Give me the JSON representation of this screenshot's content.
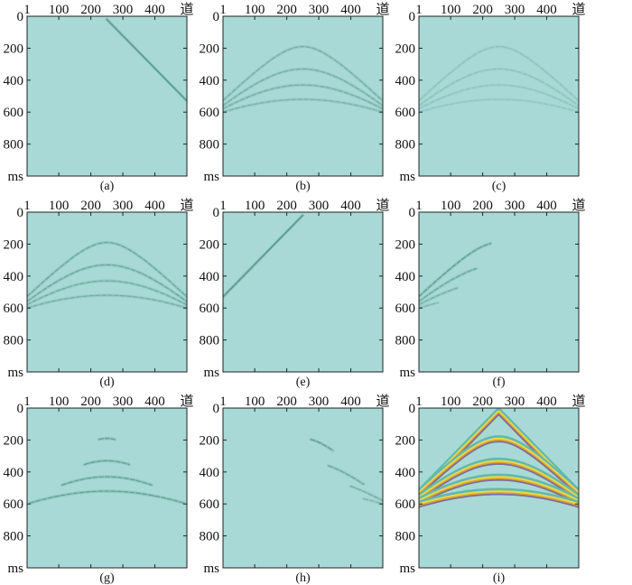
{
  "colors": {
    "background": "#a8d9d6",
    "frame": "#222222",
    "event": "#6fae9e",
    "event_dark": "#4f8f82",
    "band_purple": "#7a6aa6",
    "band_orange": "#d8a038",
    "band_yellow": "#e8d84a",
    "band_teal": "#5fb9b0"
  },
  "chart_data": [
    {
      "panel": "a",
      "caption": "(a)",
      "type": "heatmap",
      "xticks": [
        "1",
        "100",
        "200",
        "300",
        "400",
        "道"
      ],
      "yticks": [
        "0",
        "200",
        "400",
        "600",
        "800",
        "ms"
      ],
      "xlim": [
        1,
        500
      ],
      "ylim": [
        0,
        1000
      ],
      "y_inverted": true,
      "series": [
        {
          "kind": "line",
          "strength": 0.9,
          "x": [
            250,
            500
          ],
          "y": [
            20,
            530
          ]
        }
      ]
    },
    {
      "panel": "b",
      "caption": "(b)",
      "type": "heatmap",
      "xticks": [
        "1",
        "100",
        "200",
        "300",
        "400",
        "道"
      ],
      "yticks": [
        "0",
        "200",
        "400",
        "600",
        "800",
        "ms"
      ],
      "xlim": [
        1,
        500
      ],
      "ylim": [
        0,
        1000
      ],
      "y_inverted": true,
      "series": [
        {
          "kind": "hyperbola",
          "strength": 0.5,
          "apex_x": 250,
          "apex_t": 190,
          "edge_t": 530,
          "x_range": [
            1,
            500
          ]
        },
        {
          "kind": "hyperbola",
          "strength": 0.5,
          "apex_x": 250,
          "apex_t": 330,
          "edge_t": 560,
          "x_range": [
            1,
            500
          ]
        },
        {
          "kind": "hyperbola",
          "strength": 0.5,
          "apex_x": 250,
          "apex_t": 430,
          "edge_t": 580,
          "x_range": [
            1,
            500
          ]
        },
        {
          "kind": "hyperbola",
          "strength": 0.45,
          "apex_x": 250,
          "apex_t": 520,
          "edge_t": 600,
          "x_range": [
            1,
            500
          ]
        }
      ]
    },
    {
      "panel": "c",
      "caption": "(c)",
      "type": "heatmap",
      "xticks": [
        "1",
        "100",
        "200",
        "300",
        "400",
        "道"
      ],
      "yticks": [
        "0",
        "200",
        "400",
        "600",
        "800",
        "ms"
      ],
      "xlim": [
        1,
        500
      ],
      "ylim": [
        0,
        1000
      ],
      "y_inverted": true,
      "series": [
        {
          "kind": "hyperbola",
          "strength": 0.25,
          "apex_x": 250,
          "apex_t": 190,
          "edge_t": 530,
          "x_range": [
            1,
            500
          ]
        },
        {
          "kind": "hyperbola",
          "strength": 0.25,
          "apex_x": 250,
          "apex_t": 330,
          "edge_t": 560,
          "x_range": [
            1,
            500
          ]
        },
        {
          "kind": "hyperbola",
          "strength": 0.22,
          "apex_x": 250,
          "apex_t": 430,
          "edge_t": 580,
          "x_range": [
            1,
            500
          ]
        },
        {
          "kind": "hyperbola",
          "strength": 0.2,
          "apex_x": 250,
          "apex_t": 520,
          "edge_t": 600,
          "x_range": [
            1,
            500
          ]
        }
      ]
    },
    {
      "panel": "d",
      "caption": "(d)",
      "type": "heatmap",
      "xticks": [
        "1",
        "100",
        "200",
        "300",
        "400",
        "道"
      ],
      "yticks": [
        "0",
        "200",
        "400",
        "600",
        "800",
        "ms"
      ],
      "xlim": [
        1,
        500
      ],
      "ylim": [
        0,
        1000
      ],
      "y_inverted": true,
      "series": [
        {
          "kind": "hyperbola",
          "strength": 0.6,
          "apex_x": 250,
          "apex_t": 190,
          "edge_t": 530,
          "x_range": [
            1,
            500
          ]
        },
        {
          "kind": "hyperbola",
          "strength": 0.6,
          "apex_x": 250,
          "apex_t": 330,
          "edge_t": 560,
          "x_range": [
            1,
            500
          ]
        },
        {
          "kind": "hyperbola",
          "strength": 0.55,
          "apex_x": 250,
          "apex_t": 430,
          "edge_t": 580,
          "x_range": [
            1,
            500
          ]
        },
        {
          "kind": "hyperbola",
          "strength": 0.5,
          "apex_x": 250,
          "apex_t": 520,
          "edge_t": 600,
          "x_range": [
            1,
            500
          ]
        }
      ]
    },
    {
      "panel": "e",
      "caption": "(e)",
      "type": "heatmap",
      "xticks": [
        "1",
        "100",
        "200",
        "300",
        "400",
        "道"
      ],
      "yticks": [
        "0",
        "200",
        "400",
        "600",
        "800",
        "ms"
      ],
      "xlim": [
        1,
        500
      ],
      "ylim": [
        0,
        1000
      ],
      "y_inverted": true,
      "series": [
        {
          "kind": "line",
          "strength": 0.95,
          "x": [
            1,
            250
          ],
          "y": [
            530,
            20
          ]
        }
      ]
    },
    {
      "panel": "f",
      "caption": "(f)",
      "type": "heatmap",
      "xticks": [
        "1",
        "100",
        "200",
        "300",
        "400",
        "道"
      ],
      "yticks": [
        "0",
        "200",
        "400",
        "600",
        "800",
        "ms"
      ],
      "xlim": [
        1,
        500
      ],
      "ylim": [
        0,
        1000
      ],
      "y_inverted": true,
      "series": [
        {
          "kind": "hyperbola",
          "strength": 0.75,
          "apex_x": 250,
          "apex_t": 190,
          "edge_t": 530,
          "x_range": [
            1,
            225
          ]
        },
        {
          "kind": "hyperbola",
          "strength": 0.6,
          "apex_x": 250,
          "apex_t": 330,
          "edge_t": 560,
          "x_range": [
            1,
            180
          ]
        },
        {
          "kind": "hyperbola",
          "strength": 0.5,
          "apex_x": 250,
          "apex_t": 430,
          "edge_t": 580,
          "x_range": [
            1,
            120
          ]
        },
        {
          "kind": "hyperbola",
          "strength": 0.4,
          "apex_x": 250,
          "apex_t": 520,
          "edge_t": 600,
          "x_range": [
            1,
            60
          ]
        }
      ]
    },
    {
      "panel": "g",
      "caption": "(g)",
      "type": "heatmap",
      "xticks": [
        "1",
        "100",
        "200",
        "300",
        "400",
        "道"
      ],
      "yticks": [
        "0",
        "200",
        "400",
        "600",
        "800",
        "ms"
      ],
      "xlim": [
        1,
        500
      ],
      "ylim": [
        0,
        1000
      ],
      "y_inverted": true,
      "series": [
        {
          "kind": "hyperbola",
          "strength": 0.7,
          "apex_x": 250,
          "apex_t": 190,
          "edge_t": 530,
          "x_range": [
            225,
            275
          ]
        },
        {
          "kind": "hyperbola",
          "strength": 0.7,
          "apex_x": 250,
          "apex_t": 330,
          "edge_t": 560,
          "x_range": [
            180,
            320
          ]
        },
        {
          "kind": "hyperbola",
          "strength": 0.7,
          "apex_x": 250,
          "apex_t": 430,
          "edge_t": 580,
          "x_range": [
            110,
            390
          ]
        },
        {
          "kind": "hyperbola",
          "strength": 0.7,
          "apex_x": 250,
          "apex_t": 520,
          "edge_t": 600,
          "x_range": [
            10,
            490
          ]
        }
      ]
    },
    {
      "panel": "h",
      "caption": "(h)",
      "type": "heatmap",
      "xticks": [
        "1",
        "100",
        "200",
        "300",
        "400",
        "道"
      ],
      "yticks": [
        "0",
        "200",
        "400",
        "600",
        "800",
        "ms"
      ],
      "xlim": [
        1,
        500
      ],
      "ylim": [
        0,
        1000
      ],
      "y_inverted": true,
      "series": [
        {
          "kind": "hyperbola",
          "strength": 0.75,
          "apex_x": 250,
          "apex_t": 190,
          "edge_t": 530,
          "x_range": [
            275,
            345
          ]
        },
        {
          "kind": "hyperbola",
          "strength": 0.6,
          "apex_x": 250,
          "apex_t": 330,
          "edge_t": 560,
          "x_range": [
            330,
            440
          ]
        },
        {
          "kind": "hyperbola",
          "strength": 0.5,
          "apex_x": 250,
          "apex_t": 430,
          "edge_t": 580,
          "x_range": [
            400,
            500
          ]
        },
        {
          "kind": "hyperbola",
          "strength": 0.4,
          "apex_x": 250,
          "apex_t": 520,
          "edge_t": 600,
          "x_range": [
            440,
            500
          ]
        }
      ]
    },
    {
      "panel": "i",
      "caption": "(i)",
      "type": "heatmap",
      "xticks": [
        "1",
        "100",
        "200",
        "300",
        "400",
        "道"
      ],
      "yticks": [
        "0",
        "200",
        "400",
        "600",
        "800",
        "ms"
      ],
      "xlim": [
        1,
        500
      ],
      "ylim": [
        0,
        1000
      ],
      "y_inverted": true,
      "series": [
        {
          "kind": "band_line",
          "x": [
            1,
            250,
            500
          ],
          "y": [
            530,
            20,
            530
          ]
        },
        {
          "kind": "band_hyperbola",
          "apex_x": 250,
          "apex_t": 190,
          "edge_t": 530,
          "x_range": [
            1,
            500
          ]
        },
        {
          "kind": "band_hyperbola",
          "apex_x": 250,
          "apex_t": 330,
          "edge_t": 560,
          "x_range": [
            1,
            500
          ]
        },
        {
          "kind": "band_hyperbola",
          "apex_x": 250,
          "apex_t": 430,
          "edge_t": 580,
          "x_range": [
            1,
            500
          ]
        },
        {
          "kind": "band_hyperbola",
          "apex_x": 250,
          "apex_t": 520,
          "edge_t": 600,
          "x_range": [
            1,
            500
          ]
        }
      ]
    }
  ]
}
